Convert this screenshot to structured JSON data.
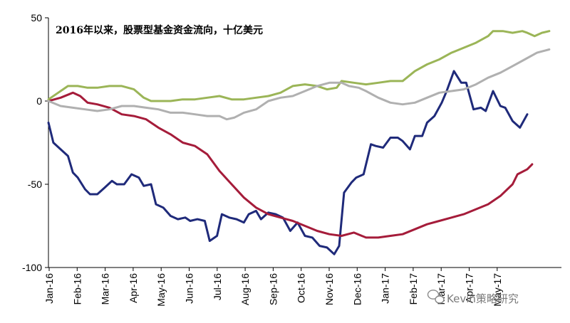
{
  "chart_data": {
    "type": "line",
    "title": "2016年以来，股票型基金资金流向，十亿美元",
    "xlabel": "",
    "ylabel": "",
    "ylim": [
      -100,
      50
    ],
    "yticks": [
      50,
      0,
      -50,
      -100
    ],
    "xlim": [
      0,
      21
    ],
    "categories": [
      "Jan-16",
      "Feb-16",
      "Mar-16",
      "Apr-16",
      "May-16",
      "Jun-16",
      "Jul-16",
      "Aug-16",
      "Sep-16",
      "Oct-16",
      "Nov-16",
      "Dec-16",
      "Jan-17",
      "Feb-17",
      "Mar-17",
      "Apr-17",
      "May-17"
    ],
    "grid": false,
    "legend": "none",
    "series": [
      {
        "color": "#1f2a7a",
        "points": [
          [
            0,
            -13
          ],
          [
            0.2,
            -25
          ],
          [
            0.5,
            -29
          ],
          [
            0.8,
            -33
          ],
          [
            1.0,
            -43
          ],
          [
            1.2,
            -46
          ],
          [
            1.5,
            -53
          ],
          [
            1.7,
            -56
          ],
          [
            2.0,
            -56
          ],
          [
            2.3,
            -52
          ],
          [
            2.6,
            -48
          ],
          [
            2.8,
            -50
          ],
          [
            3.1,
            -50
          ],
          [
            3.4,
            -44
          ],
          [
            3.7,
            -46
          ],
          [
            3.9,
            -51
          ],
          [
            4.2,
            -50
          ],
          [
            4.4,
            -62
          ],
          [
            4.7,
            -64
          ],
          [
            5.0,
            -69
          ],
          [
            5.3,
            -71
          ],
          [
            5.6,
            -70
          ],
          [
            5.8,
            -72
          ],
          [
            6.1,
            -71
          ],
          [
            6.4,
            -72
          ],
          [
            6.6,
            -84
          ],
          [
            6.9,
            -81
          ],
          [
            7.1,
            -68
          ],
          [
            7.4,
            -70
          ],
          [
            7.7,
            -71
          ],
          [
            8.0,
            -73
          ],
          [
            8.2,
            -68
          ],
          [
            8.5,
            -66
          ],
          [
            8.7,
            -71
          ],
          [
            9.0,
            -67
          ],
          [
            9.3,
            -68
          ],
          [
            9.6,
            -70
          ],
          [
            9.9,
            -78
          ],
          [
            10.2,
            -73
          ],
          [
            10.5,
            -81
          ],
          [
            10.8,
            -82
          ],
          [
            11.1,
            -87
          ],
          [
            11.4,
            -88
          ],
          [
            11.7,
            -92
          ],
          [
            11.9,
            -87
          ],
          [
            12.1,
            -55
          ],
          [
            12.4,
            -49
          ],
          [
            12.6,
            -46
          ],
          [
            12.9,
            -44
          ],
          [
            13.2,
            -26
          ],
          [
            13.4,
            -27
          ],
          [
            13.7,
            -28
          ],
          [
            14.0,
            -22
          ],
          [
            14.3,
            -22
          ],
          [
            14.5,
            -24
          ],
          [
            14.8,
            -29
          ],
          [
            15.0,
            -21
          ],
          [
            15.3,
            -21
          ],
          [
            15.5,
            -13
          ],
          [
            15.8,
            -9
          ],
          [
            16.1,
            -1
          ],
          [
            16.3,
            6
          ],
          [
            16.6,
            18
          ],
          [
            16.9,
            11
          ],
          [
            17.1,
            11
          ],
          [
            17.4,
            -5
          ],
          [
            17.7,
            -4
          ],
          [
            17.9,
            -6
          ],
          [
            18.2,
            6
          ],
          [
            18.5,
            -3
          ],
          [
            18.7,
            -4
          ],
          [
            19.0,
            -12
          ],
          [
            19.3,
            -16
          ],
          [
            19.6,
            -8
          ]
        ]
      },
      {
        "color": "#a51c3a",
        "points": [
          [
            0,
            0
          ],
          [
            0.5,
            2
          ],
          [
            1.0,
            5
          ],
          [
            1.3,
            3
          ],
          [
            1.6,
            -1
          ],
          [
            2.0,
            -2
          ],
          [
            2.5,
            -4
          ],
          [
            3.0,
            -8
          ],
          [
            3.5,
            -9
          ],
          [
            4.0,
            -11
          ],
          [
            4.5,
            -16
          ],
          [
            5.0,
            -20
          ],
          [
            5.5,
            -25
          ],
          [
            6.0,
            -27
          ],
          [
            6.5,
            -32
          ],
          [
            7.0,
            -42
          ],
          [
            7.5,
            -50
          ],
          [
            8.0,
            -58
          ],
          [
            8.5,
            -64
          ],
          [
            9.0,
            -68
          ],
          [
            9.5,
            -70
          ],
          [
            10.0,
            -72
          ],
          [
            10.5,
            -75
          ],
          [
            11.0,
            -78
          ],
          [
            11.5,
            -80
          ],
          [
            12.0,
            -81
          ],
          [
            12.5,
            -79
          ],
          [
            13.0,
            -82
          ],
          [
            13.5,
            -82
          ],
          [
            14.0,
            -81
          ],
          [
            14.5,
            -80
          ],
          [
            15.0,
            -77
          ],
          [
            15.5,
            -74
          ],
          [
            16.0,
            -72
          ],
          [
            16.5,
            -70
          ],
          [
            17.0,
            -68
          ],
          [
            17.5,
            -65
          ],
          [
            18.0,
            -62
          ],
          [
            18.5,
            -57
          ],
          [
            19.0,
            -50
          ],
          [
            19.2,
            -44
          ],
          [
            19.6,
            -41
          ],
          [
            19.8,
            -38
          ]
        ]
      },
      {
        "color": "#9bb557",
        "points": [
          [
            0,
            1
          ],
          [
            0.4,
            5
          ],
          [
            0.8,
            9
          ],
          [
            1.2,
            9
          ],
          [
            1.6,
            8
          ],
          [
            2.0,
            8
          ],
          [
            2.5,
            9
          ],
          [
            3.0,
            9
          ],
          [
            3.5,
            7
          ],
          [
            3.9,
            2
          ],
          [
            4.2,
            0
          ],
          [
            4.6,
            0
          ],
          [
            5.0,
            0
          ],
          [
            5.5,
            1
          ],
          [
            6.0,
            1
          ],
          [
            6.5,
            2
          ],
          [
            7.0,
            3
          ],
          [
            7.5,
            1
          ],
          [
            8.0,
            1
          ],
          [
            8.5,
            2
          ],
          [
            9.0,
            3
          ],
          [
            9.5,
            5
          ],
          [
            10.0,
            9
          ],
          [
            10.5,
            10
          ],
          [
            11.0,
            9
          ],
          [
            11.4,
            7
          ],
          [
            11.8,
            8
          ],
          [
            12.0,
            12
          ],
          [
            12.5,
            11
          ],
          [
            13.0,
            10
          ],
          [
            13.5,
            11
          ],
          [
            14.0,
            12
          ],
          [
            14.5,
            12
          ],
          [
            15.0,
            18
          ],
          [
            15.5,
            22
          ],
          [
            16.0,
            25
          ],
          [
            16.5,
            29
          ],
          [
            17.0,
            32
          ],
          [
            17.5,
            35
          ],
          [
            18.0,
            39
          ],
          [
            18.2,
            42
          ],
          [
            18.6,
            42
          ],
          [
            19.0,
            41
          ],
          [
            19.4,
            42
          ],
          [
            19.6,
            41
          ],
          [
            19.9,
            39
          ],
          [
            20.2,
            41
          ],
          [
            20.5,
            42
          ]
        ]
      },
      {
        "color": "#b0b0b0",
        "points": [
          [
            0,
            0
          ],
          [
            0.5,
            -3
          ],
          [
            1.0,
            -4
          ],
          [
            1.5,
            -5
          ],
          [
            2.0,
            -6
          ],
          [
            2.5,
            -5
          ],
          [
            3.0,
            -3
          ],
          [
            3.5,
            -3
          ],
          [
            4.0,
            -4
          ],
          [
            4.5,
            -5
          ],
          [
            5.0,
            -7
          ],
          [
            5.5,
            -7
          ],
          [
            6.0,
            -8
          ],
          [
            6.5,
            -9
          ],
          [
            7.0,
            -9
          ],
          [
            7.3,
            -11
          ],
          [
            7.6,
            -10
          ],
          [
            8.0,
            -7
          ],
          [
            8.5,
            -5
          ],
          [
            9.0,
            0
          ],
          [
            9.5,
            2
          ],
          [
            10.0,
            3
          ],
          [
            10.5,
            6
          ],
          [
            11.0,
            9
          ],
          [
            11.5,
            11
          ],
          [
            12.0,
            11
          ],
          [
            12.3,
            9
          ],
          [
            12.7,
            8
          ],
          [
            13.0,
            6
          ],
          [
            13.5,
            2
          ],
          [
            14.0,
            -1
          ],
          [
            14.5,
            -2
          ],
          [
            15.0,
            -1
          ],
          [
            15.5,
            2
          ],
          [
            16.0,
            5
          ],
          [
            16.5,
            6
          ],
          [
            17.0,
            7
          ],
          [
            17.5,
            10
          ],
          [
            18.0,
            14
          ],
          [
            18.5,
            17
          ],
          [
            19.0,
            21
          ],
          [
            19.5,
            25
          ],
          [
            20.0,
            29
          ],
          [
            20.5,
            31
          ]
        ]
      }
    ]
  },
  "watermark": {
    "icon": "wechat-icon",
    "text": "Kevin策略研究"
  }
}
